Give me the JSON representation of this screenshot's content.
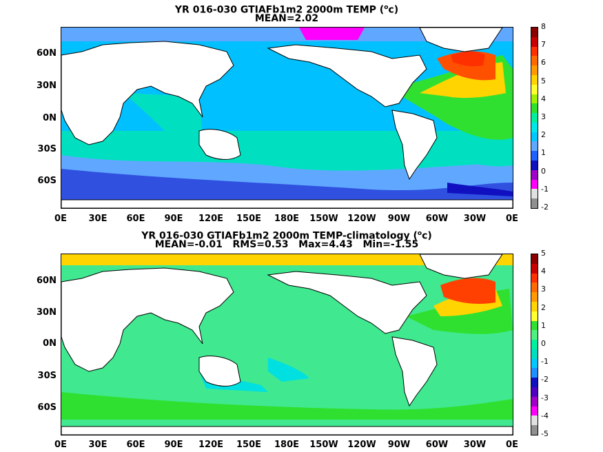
{
  "panels": [
    {
      "title_line1": "YR 016-030 GTIAFb1m2 2000m TEMP (",
      "unit_sup": "o",
      "unit_after": "c)",
      "title_line2": "MEAN=2.02",
      "colorbar_labels": [
        "8",
        "7",
        "6",
        "5",
        "4",
        "3",
        "2",
        "1",
        "0",
        "-1",
        "-2"
      ],
      "colorbar_colors": [
        "#8b0000",
        "#c80000",
        "#ff3000",
        "#ff6a00",
        "#ff9a00",
        "#ffd400",
        "#ffff30",
        "#a0f000",
        "#30e030",
        "#00f0a0",
        "#00e8e8",
        "#00c8ff",
        "#60a8ff",
        "#2060ff",
        "#1010c0",
        "#a000c8",
        "#ff00ff",
        "#e0e0e0",
        "#909090"
      ],
      "ocean_colors": {
        "deep": "#00c0ff",
        "cool": "#2090ff",
        "cold": "#3050e0",
        "atlantic_warm": "#ffd400",
        "atlantic_hot": "#ff5000",
        "teal": "#00e0c0",
        "green": "#30e030"
      }
    },
    {
      "title_line1": "YR 016-030 GTIAFb1m2 2000m TEMP-climatology (",
      "unit_sup": "o",
      "unit_after": "c)",
      "title_line2": "MEAN=-0.01   RMS=0.53   Max=4.43   Min=-1.55",
      "colorbar_labels": [
        "5",
        "4",
        "3",
        "2",
        "1",
        "0",
        "-1",
        "-2",
        "-3",
        "-4",
        "-5"
      ],
      "colorbar_colors": [
        "#8b0000",
        "#c80000",
        "#ff3000",
        "#ff6a00",
        "#ff9a00",
        "#ffd400",
        "#ffff30",
        "#30e030",
        "#50f080",
        "#00f0a0",
        "#00e0c0",
        "#00c8ff",
        "#2090ff",
        "#1010c0",
        "#5000c0",
        "#a000c8",
        "#ff00ff",
        "#e0e0e0",
        "#909090"
      ],
      "ocean_colors": {
        "base": "#40e890",
        "green": "#30e030",
        "cyan": "#00e0e0",
        "warm": "#ff9a00",
        "hot": "#ff4000"
      }
    }
  ],
  "x_axis_labels": [
    "0E",
    "30E",
    "60E",
    "90E",
    "120E",
    "150E",
    "180E",
    "150W",
    "120W",
    "90W",
    "60W",
    "30W",
    "0E"
  ],
  "y_axis_labels": [
    "60N",
    "30N",
    "0N",
    "30S",
    "60S"
  ]
}
